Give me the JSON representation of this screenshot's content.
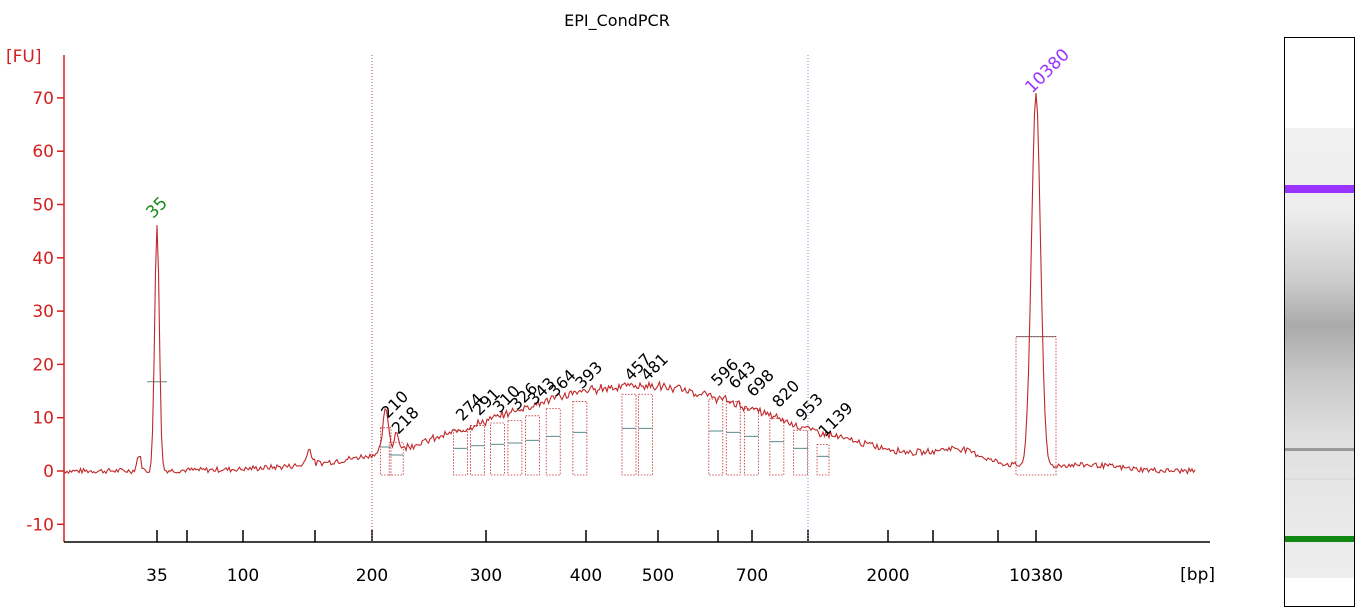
{
  "chart_data": {
    "type": "line",
    "title": "EPI_CondPCR",
    "ylabel": "[FU]",
    "xlabel": "[bp]",
    "ylim": [
      -13,
      77
    ],
    "yticks": [
      -10,
      0,
      10,
      20,
      30,
      40,
      50,
      60,
      70
    ],
    "xticks": [
      {
        "pos": 35,
        "label": "35"
      },
      {
        "pos": 50,
        "label": ""
      },
      {
        "pos": 100,
        "label": "100"
      },
      {
        "pos": 150,
        "label": ""
      },
      {
        "pos": 200,
        "label": "200"
      },
      {
        "pos": 300,
        "label": "300"
      },
      {
        "pos": 400,
        "label": "400"
      },
      {
        "pos": 500,
        "label": "500"
      },
      {
        "pos": 600,
        "label": ""
      },
      {
        "pos": 700,
        "label": "700"
      },
      {
        "pos": 1000,
        "label": ""
      },
      {
        "pos": 2000,
        "label": "2000"
      },
      {
        "pos": 3000,
        "label": ""
      },
      {
        "pos": 7000,
        "label": ""
      },
      {
        "pos": 10380,
        "label": "10380"
      }
    ],
    "markers": [
      {
        "size": 35,
        "label": "35",
        "height": 46.5,
        "color": "#1a8a1a"
      },
      {
        "size": 10380,
        "label": "10380",
        "height": 70,
        "color": "#9933ff"
      }
    ],
    "peaks": [
      {
        "size": 210,
        "label": "210",
        "height": 9
      },
      {
        "size": 218,
        "label": "218",
        "height": 6
      },
      {
        "size": 274,
        "label": "274",
        "height": 8.5
      },
      {
        "size": 291,
        "label": "291",
        "height": 9.5
      },
      {
        "size": 310,
        "label": "310",
        "height": 10
      },
      {
        "size": 326,
        "label": "326",
        "height": 10.5
      },
      {
        "size": 343,
        "label": "343",
        "height": 11.5
      },
      {
        "size": 364,
        "label": "364",
        "height": 13
      },
      {
        "size": 393,
        "label": "393",
        "height": 14.5
      },
      {
        "size": 457,
        "label": "457",
        "height": 16
      },
      {
        "size": 481,
        "label": "481",
        "height": 16
      },
      {
        "size": 596,
        "label": "596",
        "height": 15
      },
      {
        "size": 643,
        "label": "643",
        "height": 14.5
      },
      {
        "size": 698,
        "label": "698",
        "height": 13
      },
      {
        "size": 820,
        "label": "820",
        "height": 11
      },
      {
        "size": 953,
        "label": "953",
        "height": 8.5
      },
      {
        "size": 1139,
        "label": "1139",
        "height": 5.5
      }
    ],
    "region_lines": [
      200,
      1000
    ],
    "trace_color": "#c0282a",
    "axis_color": "#d42020",
    "gel_bands": [
      {
        "label": "upper marker",
        "color": "#9933ff"
      },
      {
        "label": "lower marker",
        "color": "#118811"
      }
    ]
  }
}
